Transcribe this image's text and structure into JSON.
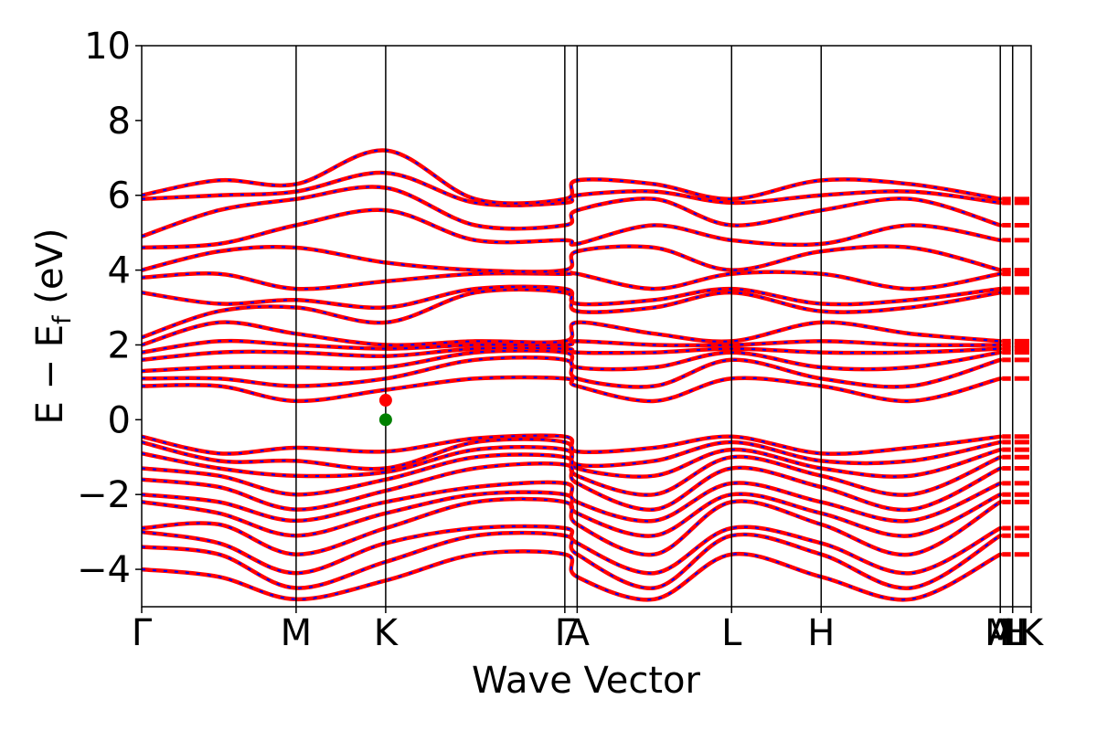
{
  "chart_data": {
    "type": "line",
    "xlabel": "Wave Vector",
    "ylabel": "E − E",
    "ylabel_sub": "f",
    "ylabel_unit": " (eV)",
    "ylim": [
      -5,
      10
    ],
    "yticks": [
      -4,
      -2,
      0,
      2,
      4,
      6,
      8,
      10
    ],
    "ytick_labels": [
      "−4",
      "−2",
      "0",
      "2",
      "4",
      "6",
      "8",
      "10"
    ],
    "xlim": [
      0,
      5.76
    ],
    "kpoints": [
      {
        "label": "Γ",
        "x": 0.0
      },
      {
        "label": "M",
        "x": 1.0
      },
      {
        "label": "K",
        "x": 1.58
      },
      {
        "label": "Γ",
        "x": 2.74
      },
      {
        "label": "A",
        "x": 2.82
      },
      {
        "label": "L",
        "x": 3.82
      },
      {
        "label": "H",
        "x": 4.4
      },
      {
        "label": "A",
        "x": 5.56
      },
      {
        "label": "L",
        "x": 5.64
      },
      {
        "label": "M",
        "x": 5.56
      },
      {
        "label": "H",
        "x": 5.64
      },
      {
        "label": "K",
        "x": 5.76
      }
    ],
    "vlines": [
      1.0,
      1.58,
      2.74,
      2.82,
      3.82,
      4.4,
      5.56,
      5.64,
      5.76
    ],
    "series_colors": {
      "spin_up": "#ff0000",
      "spin_down": "#0000ff"
    },
    "markers": [
      {
        "name": "CBM",
        "x": 1.58,
        "y": 0.52,
        "color": "#ff0000"
      },
      {
        "name": "VBM",
        "x": 1.58,
        "y": 0.0,
        "color": "#008000"
      }
    ],
    "bands": [
      [
        -0.45,
        -0.9,
        -0.75,
        -0.85,
        -0.5,
        -0.45,
        -0.85,
        -0.75,
        -0.45,
        -0.9,
        -0.75,
        -0.45
      ],
      [
        -0.6,
        -1.1,
        -1.1,
        -1.3,
        -0.6,
        -0.6,
        -1.2,
        -1.1,
        -0.6,
        -1.1,
        -1.1,
        -0.6
      ],
      [
        -0.9,
        -1.3,
        -1.5,
        -1.4,
        -0.8,
        -0.8,
        -1.3,
        -1.5,
        -0.8,
        -1.3,
        -1.5,
        -0.8
      ],
      [
        -1.3,
        -1.5,
        -2.0,
        -1.6,
        -1.0,
        -1.0,
        -1.5,
        -2.0,
        -1.0,
        -1.5,
        -2.0,
        -1.0
      ],
      [
        -1.6,
        -1.8,
        -2.4,
        -1.9,
        -1.3,
        -1.2,
        -1.7,
        -2.4,
        -1.3,
        -1.8,
        -2.4,
        -1.3
      ],
      [
        -2.0,
        -2.2,
        -2.7,
        -2.2,
        -1.8,
        -1.7,
        -2.2,
        -2.7,
        -1.7,
        -2.2,
        -2.7,
        -1.7
      ],
      [
        -2.2,
        -2.5,
        -3.1,
        -2.5,
        -2.0,
        -2.0,
        -2.5,
        -3.1,
        -2.0,
        -2.5,
        -3.1,
        -2.0
      ],
      [
        -2.9,
        -2.8,
        -3.6,
        -2.9,
        -2.2,
        -2.2,
        -2.8,
        -3.6,
        -2.2,
        -2.8,
        -3.6,
        -2.2
      ],
      [
        -3.0,
        -3.3,
        -4.1,
        -3.3,
        -2.9,
        -2.9,
        -3.3,
        -4.1,
        -2.9,
        -3.3,
        -4.1,
        -2.9
      ],
      [
        -3.4,
        -3.6,
        -4.5,
        -3.8,
        -3.1,
        -3.1,
        -3.6,
        -4.5,
        -3.1,
        -3.6,
        -4.5,
        -3.1
      ],
      [
        -4.0,
        -4.2,
        -4.8,
        -4.3,
        -3.6,
        -3.6,
        -4.2,
        -4.8,
        -3.6,
        -4.2,
        -4.8,
        -3.6
      ],
      [
        0.9,
        0.9,
        0.5,
        0.8,
        1.1,
        1.1,
        0.9,
        0.5,
        1.1,
        0.9,
        0.5,
        1.1
      ],
      [
        1.1,
        1.1,
        0.9,
        1.1,
        1.6,
        1.6,
        1.1,
        0.9,
        1.6,
        1.1,
        0.9,
        1.6
      ],
      [
        1.3,
        1.4,
        1.4,
        1.4,
        1.8,
        1.8,
        1.4,
        1.4,
        1.8,
        1.4,
        1.4,
        1.8
      ],
      [
        1.6,
        1.8,
        1.8,
        1.7,
        1.9,
        1.9,
        1.8,
        1.8,
        1.9,
        1.8,
        1.8,
        1.9
      ],
      [
        1.8,
        2.1,
        2.0,
        1.9,
        2.0,
        2.0,
        2.1,
        2.0,
        2.0,
        2.1,
        2.0,
        2.0
      ],
      [
        2.0,
        2.6,
        2.3,
        2.0,
        2.1,
        2.1,
        2.6,
        2.3,
        2.1,
        2.6,
        2.3,
        2.1
      ],
      [
        2.2,
        2.9,
        3.0,
        2.6,
        3.4,
        3.4,
        2.9,
        3.0,
        3.4,
        2.9,
        3.0,
        3.4
      ],
      [
        3.4,
        3.1,
        3.2,
        3.0,
        3.5,
        3.5,
        3.1,
        3.2,
        3.5,
        3.1,
        3.2,
        3.5
      ],
      [
        3.8,
        3.9,
        3.5,
        3.7,
        3.9,
        3.9,
        3.9,
        3.5,
        3.9,
        3.9,
        3.5,
        3.9
      ],
      [
        4.0,
        4.5,
        4.6,
        4.2,
        4.0,
        4.0,
        4.5,
        4.6,
        4.0,
        4.5,
        4.6,
        4.0
      ],
      [
        4.6,
        4.7,
        5.2,
        5.6,
        4.8,
        4.8,
        4.7,
        5.2,
        4.8,
        4.7,
        5.2,
        4.8
      ],
      [
        4.9,
        5.6,
        5.9,
        6.2,
        5.2,
        5.2,
        5.6,
        5.9,
        5.2,
        5.6,
        5.9,
        5.2
      ],
      [
        5.9,
        6.0,
        6.1,
        6.6,
        5.8,
        5.8,
        6.0,
        6.1,
        5.8,
        6.0,
        6.1,
        5.8
      ],
      [
        6.0,
        6.4,
        6.3,
        7.2,
        5.9,
        5.9,
        6.4,
        6.3,
        5.9,
        6.4,
        6.3,
        5.9
      ]
    ]
  }
}
